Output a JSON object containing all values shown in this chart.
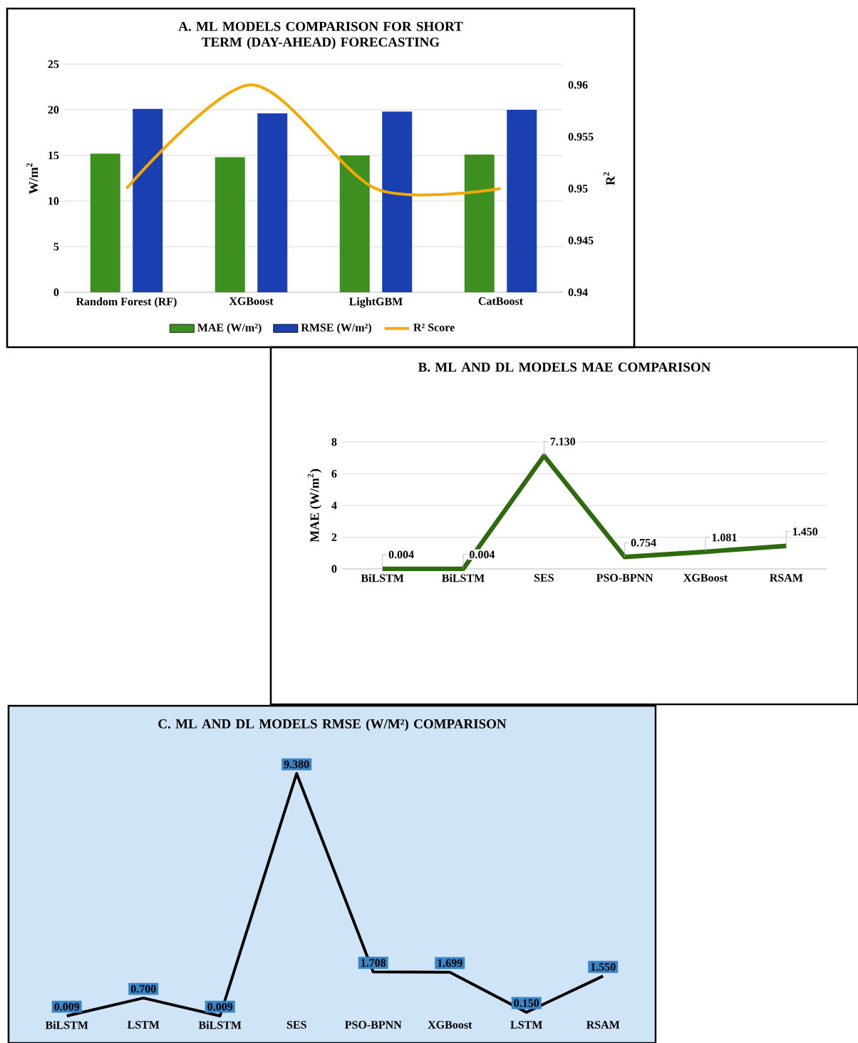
{
  "chart_data": [
    {
      "type": "bar",
      "title": "A. ML MODELS COMPARISON FOR SHORT TERM (DAY-AHEAD) FORECASTING",
      "categories": [
        "Random Forest (RF)",
        "XGBoost",
        "LightGBM",
        "CatBoost"
      ],
      "series": [
        {
          "name": "MAE (W/m²)",
          "color": "#3d8f1f",
          "values": [
            15.2,
            14.8,
            15.0,
            15.1
          ]
        },
        {
          "name": "RMSE (W/m²)",
          "color": "#1a3fb0",
          "values": [
            20.1,
            19.6,
            19.8,
            20.0
          ]
        },
        {
          "name": "R² Score",
          "type": "line",
          "axis": "y2",
          "color": "#f5a800",
          "values": [
            0.95,
            0.96,
            0.95,
            0.95
          ]
        }
      ],
      "ylabel": "W/m$^{2}$",
      "y2label": "R$^{2}$",
      "ylim": [
        0,
        25
      ],
      "yticks": [
        0,
        5,
        10,
        15,
        20,
        25
      ],
      "y2lim": [
        0.94,
        0.962
      ],
      "y2ticks": [
        0.94,
        0.945,
        0.95,
        0.955,
        0.96
      ],
      "grid": "y",
      "legend": "bottom"
    },
    {
      "type": "line",
      "title": "B. ML AND DL MODELS MAE COMPARISON",
      "categories": [
        "BiLSTM",
        "BiLSTM",
        "SES",
        "PSO-BPNN",
        "XGBoost",
        "RSAM"
      ],
      "series": [
        {
          "color": "#2e6b0f",
          "values": [
            0.004,
            0.004,
            7.13,
            0.754,
            1.081,
            1.45
          ],
          "value_labels": [
            "0.004",
            "0.004",
            "7.130",
            "0.754",
            "1.081",
            "1.450"
          ]
        }
      ],
      "ylabel": "MAE (W/m$^{2}$)",
      "ylim": [
        0,
        8
      ],
      "yticks": [
        0,
        2,
        4,
        6,
        8
      ],
      "grid": "y"
    },
    {
      "type": "line",
      "title": "C. ML AND DL MODELS RMSE (W/M²) COMPARISON",
      "categories": [
        "BiLSTM",
        "LSTM",
        "BiLSTM",
        "SES",
        "PSO-BPNN",
        "XGBoost",
        "LSTM",
        "RSAM"
      ],
      "series": [
        {
          "color": "#000000",
          "values": [
            0.009,
            0.7,
            0.009,
            9.38,
            1.708,
            1.699,
            0.15,
            1.55
          ],
          "value_labels": [
            "0.009",
            "0.700",
            "0.009",
            "9.380",
            "1.708",
            "1.699",
            "0.150",
            "1.550"
          ]
        }
      ],
      "tick_labels": "x",
      "marker": "none"
    }
  ]
}
